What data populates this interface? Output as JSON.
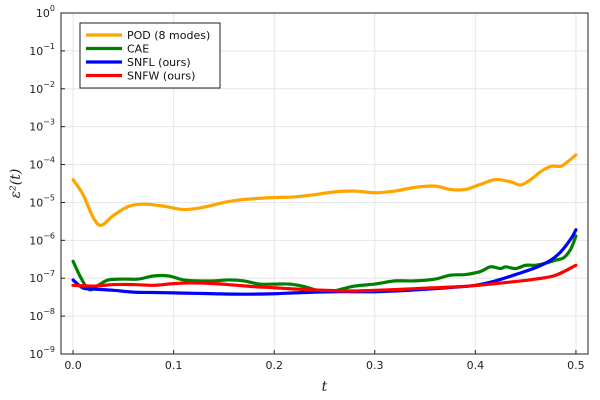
{
  "chart_data": {
    "type": "line",
    "title": "",
    "xlabel": "t",
    "ylabel": "ε²(t)",
    "xlim": [
      -0.012,
      0.512
    ],
    "ylim_log10": [
      -9,
      0
    ],
    "yscale": "log",
    "grid": true,
    "legend_position": "top-left",
    "x_ticks": [
      0.0,
      0.1,
      0.2,
      0.3,
      0.4,
      0.5
    ],
    "x_tick_labels": [
      "0.0",
      "0.1",
      "0.2",
      "0.3",
      "0.4",
      "0.5"
    ],
    "y_ticks_log10": [
      -9,
      -8,
      -7,
      -6,
      -5,
      -4,
      -3,
      -2,
      -1,
      0
    ],
    "y_tick_labels": [
      {
        "base": "10",
        "exp": "−9"
      },
      {
        "base": "10",
        "exp": "−8"
      },
      {
        "base": "10",
        "exp": "−7"
      },
      {
        "base": "10",
        "exp": "−6"
      },
      {
        "base": "10",
        "exp": "−5"
      },
      {
        "base": "10",
        "exp": "−4"
      },
      {
        "base": "10",
        "exp": "−3"
      },
      {
        "base": "10",
        "exp": "−2"
      },
      {
        "base": "10",
        "exp": "−1"
      },
      {
        "base": "10",
        "exp": "0"
      }
    ],
    "series": [
      {
        "name": "POD (8 modes)",
        "color": "#FFA500",
        "points": [
          [
            0.0,
            4e-05
          ],
          [
            0.01,
            1.6e-05
          ],
          [
            0.02,
            4e-06
          ],
          [
            0.028,
            2.5e-06
          ],
          [
            0.04,
            4.5e-06
          ],
          [
            0.055,
            7.8e-06
          ],
          [
            0.07,
            9e-06
          ],
          [
            0.09,
            8e-06
          ],
          [
            0.11,
            6.5e-06
          ],
          [
            0.13,
            7.5e-06
          ],
          [
            0.15,
            1e-05
          ],
          [
            0.17,
            1.2e-05
          ],
          [
            0.2,
            1.35e-05
          ],
          [
            0.22,
            1.4e-05
          ],
          [
            0.24,
            1.6e-05
          ],
          [
            0.26,
            1.9e-05
          ],
          [
            0.28,
            2e-05
          ],
          [
            0.3,
            1.8e-05
          ],
          [
            0.32,
            2e-05
          ],
          [
            0.34,
            2.5e-05
          ],
          [
            0.36,
            2.7e-05
          ],
          [
            0.375,
            2.2e-05
          ],
          [
            0.39,
            2.2e-05
          ],
          [
            0.405,
            3e-05
          ],
          [
            0.42,
            4e-05
          ],
          [
            0.435,
            3.5e-05
          ],
          [
            0.445,
            2.9e-05
          ],
          [
            0.455,
            4e-05
          ],
          [
            0.465,
            6.5e-05
          ],
          [
            0.475,
            9e-05
          ],
          [
            0.485,
            9e-05
          ],
          [
            0.492,
            0.00012
          ],
          [
            0.5,
            0.00018
          ]
        ]
      },
      {
        "name": "CAE",
        "color": "#008000",
        "points": [
          [
            0.0,
            2.8e-07
          ],
          [
            0.008,
            1e-07
          ],
          [
            0.016,
            5e-08
          ],
          [
            0.025,
            6.5e-08
          ],
          [
            0.035,
            9e-08
          ],
          [
            0.05,
            9.5e-08
          ],
          [
            0.065,
            9.5e-08
          ],
          [
            0.08,
            1.15e-07
          ],
          [
            0.095,
            1.15e-07
          ],
          [
            0.11,
            9e-08
          ],
          [
            0.125,
            8.5e-08
          ],
          [
            0.14,
            8.5e-08
          ],
          [
            0.155,
            9e-08
          ],
          [
            0.17,
            8.5e-08
          ],
          [
            0.185,
            7e-08
          ],
          [
            0.2,
            7e-08
          ],
          [
            0.215,
            7e-08
          ],
          [
            0.23,
            6e-08
          ],
          [
            0.245,
            4.6e-08
          ],
          [
            0.255,
            4.4e-08
          ],
          [
            0.265,
            5e-08
          ],
          [
            0.28,
            6.2e-08
          ],
          [
            0.3,
            7e-08
          ],
          [
            0.32,
            8.5e-08
          ],
          [
            0.34,
            8.5e-08
          ],
          [
            0.36,
            9.5e-08
          ],
          [
            0.375,
            1.2e-07
          ],
          [
            0.39,
            1.25e-07
          ],
          [
            0.405,
            1.5e-07
          ],
          [
            0.415,
            2e-07
          ],
          [
            0.425,
            1.8e-07
          ],
          [
            0.43,
            2e-07
          ],
          [
            0.44,
            1.8e-07
          ],
          [
            0.45,
            2.2e-07
          ],
          [
            0.46,
            2.2e-07
          ],
          [
            0.47,
            2.5e-07
          ],
          [
            0.48,
            3e-07
          ],
          [
            0.488,
            3.5e-07
          ],
          [
            0.495,
            6e-07
          ],
          [
            0.5,
            1.3e-06
          ]
        ]
      },
      {
        "name": "SNFL (ours)",
        "color": "#0000FF",
        "points": [
          [
            0.0,
            9e-08
          ],
          [
            0.01,
            5.5e-08
          ],
          [
            0.02,
            5.2e-08
          ],
          [
            0.04,
            4.8e-08
          ],
          [
            0.06,
            4.3e-08
          ],
          [
            0.08,
            4.2e-08
          ],
          [
            0.1,
            4.1e-08
          ],
          [
            0.12,
            4e-08
          ],
          [
            0.14,
            3.9e-08
          ],
          [
            0.16,
            3.8e-08
          ],
          [
            0.18,
            3.8e-08
          ],
          [
            0.2,
            3.9e-08
          ],
          [
            0.22,
            4.1e-08
          ],
          [
            0.24,
            4.3e-08
          ],
          [
            0.26,
            4.4e-08
          ],
          [
            0.28,
            4.4e-08
          ],
          [
            0.3,
            4.4e-08
          ],
          [
            0.32,
            4.6e-08
          ],
          [
            0.34,
            4.9e-08
          ],
          [
            0.36,
            5.3e-08
          ],
          [
            0.38,
            5.8e-08
          ],
          [
            0.4,
            6.5e-08
          ],
          [
            0.42,
            8.5e-08
          ],
          [
            0.44,
            1.25e-07
          ],
          [
            0.46,
            1.9e-07
          ],
          [
            0.475,
            3e-07
          ],
          [
            0.485,
            5e-07
          ],
          [
            0.495,
            1.1e-06
          ],
          [
            0.5,
            1.9e-06
          ]
        ]
      },
      {
        "name": "SNFW (ours)",
        "color": "#FF0000",
        "points": [
          [
            0.0,
            6.5e-08
          ],
          [
            0.02,
            6.2e-08
          ],
          [
            0.04,
            6.8e-08
          ],
          [
            0.06,
            6.8e-08
          ],
          [
            0.08,
            6.5e-08
          ],
          [
            0.1,
            7.2e-08
          ],
          [
            0.12,
            7.5e-08
          ],
          [
            0.14,
            7.2e-08
          ],
          [
            0.16,
            6.6e-08
          ],
          [
            0.18,
            6e-08
          ],
          [
            0.2,
            5.6e-08
          ],
          [
            0.22,
            5.2e-08
          ],
          [
            0.24,
            4.9e-08
          ],
          [
            0.26,
            4.7e-08
          ],
          [
            0.28,
            4.6e-08
          ],
          [
            0.3,
            4.8e-08
          ],
          [
            0.32,
            5e-08
          ],
          [
            0.34,
            5.3e-08
          ],
          [
            0.36,
            5.6e-08
          ],
          [
            0.38,
            5.9e-08
          ],
          [
            0.4,
            6.4e-08
          ],
          [
            0.42,
            7.2e-08
          ],
          [
            0.44,
            8.2e-08
          ],
          [
            0.46,
            9.5e-08
          ],
          [
            0.48,
            1.2e-07
          ],
          [
            0.5,
            2.2e-07
          ]
        ]
      }
    ]
  }
}
